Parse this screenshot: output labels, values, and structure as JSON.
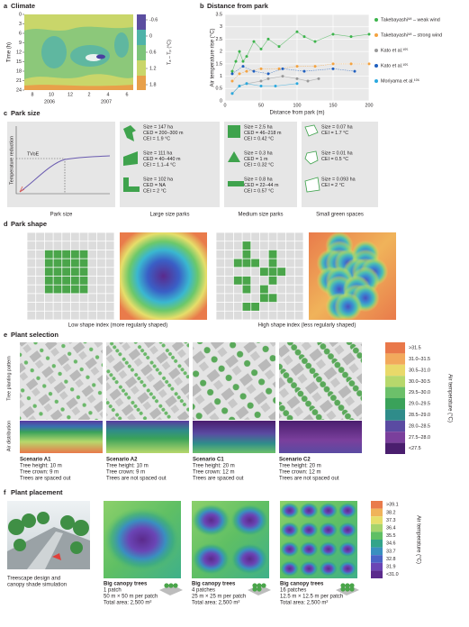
{
  "panels": {
    "a": {
      "label": "a",
      "title": "Climate",
      "y_label": "Time (h)",
      "y_ticks": [
        0,
        3,
        6,
        9,
        12,
        15,
        18,
        21,
        24
      ],
      "x_ticks": [
        8,
        10,
        12,
        2,
        4,
        6
      ],
      "years": [
        "2006",
        "2007"
      ],
      "colorbar_label": "Tₐ – Tₚ (°C)",
      "colorbar_ticks": [
        -0.6,
        0,
        0.6,
        1.2,
        1.8
      ]
    },
    "c": {
      "label": "c",
      "title": "Park size",
      "graph": {
        "y_label": "Temperature reduction",
        "annotation": "TVoE",
        "caption": "Park size"
      },
      "groups": [
        {
          "caption": "Large size parks",
          "entries": [
            [
              "Size = 147 ha",
              "CED = 200–300 m",
              "CEI = 1.9 °C"
            ],
            [
              "Size = 111 ha",
              "CED = 40–440 m",
              "CEI = 1.1–4 °C"
            ],
            [
              "Size = 102 ha",
              "CED = NA",
              "CEI = 2 °C"
            ]
          ]
        },
        {
          "caption": "Medium size parks",
          "entries": [
            [
              "Size = 2.5 ha",
              "CED = 46–218 m",
              "CEI = 0.42 °C"
            ],
            [
              "Size = 0.3 ha",
              "CED = 1 m",
              "CEI = 0.32 °C"
            ],
            [
              "Size = 0.8 ha",
              "CED = 22–44 m",
              "CEI = 0.57 °C"
            ]
          ]
        },
        {
          "caption": "Small green spaces",
          "entries": [
            [
              "Size = 0.07 ha",
              "CEI = 1.7 °C"
            ],
            [
              "Size = 0.01 ha",
              "CEI = 0.5 °C"
            ],
            [
              "Size = 0.093 ha",
              "CEI = 2 °C"
            ]
          ]
        }
      ]
    },
    "d": {
      "label": "d",
      "title": "Park shape",
      "captions": [
        "Low shape index (more regularly shaped)",
        "High shape index (less regularly shaped)"
      ]
    },
    "e": {
      "label": "e",
      "title": "Plant selection",
      "row_labels": [
        "Tree planting pattern",
        "Air distribution"
      ],
      "scenarios": [
        {
          "name": "Scenario A1",
          "lines": [
            "Tree height: 10 m",
            "Tree crown: 9 m",
            "Trees are spaced out"
          ]
        },
        {
          "name": "Scenario A2",
          "lines": [
            "Tree height: 10 m",
            "Tree crown: 9 m",
            "Trees are not spaced out"
          ]
        },
        {
          "name": "Scenario C1",
          "lines": [
            "Tree height: 20 m",
            "Tree crown: 12 m",
            "Trees are spaced out"
          ]
        },
        {
          "name": "Scenario C2",
          "lines": [
            "Tree height: 20 m",
            "Tree crown: 12 m",
            "Trees are not spaced out"
          ]
        }
      ],
      "legend_title": "Air temperature (°C)",
      "legend": [
        ">31.5",
        "31.0–31.5",
        "30.5–31.0",
        "30.0–30.5",
        "29.5–30.0",
        "29.0–29.5",
        "28.5–29.0",
        "28.0–28.5",
        "27.5–28.0",
        "<27.5"
      ],
      "legend_colors": [
        "#e9784a",
        "#f2a95c",
        "#e9d96a",
        "#b7d86c",
        "#6cc06a",
        "#3aa25a",
        "#2f8c8a",
        "#5a4ba2",
        "#7a3f9c",
        "#4a1e6e"
      ]
    },
    "f": {
      "label": "f",
      "title": "Plant placement",
      "image_caption": [
        "Treescape design and",
        "canopy shade simulation"
      ],
      "cases": [
        {
          "title": "Big canopy trees",
          "lines": [
            "1 patch",
            "50 m × 50 m per patch",
            "Total area: 2,500 m²"
          ]
        },
        {
          "title": "Big canopy trees",
          "lines": [
            "4 patches",
            "25 m × 25 m per patch",
            "Total area: 2,500 m²"
          ]
        },
        {
          "title": "Big canopy trees",
          "lines": [
            "16 patches",
            "12.5 m × 12.5 m per patch",
            "Total area: 2,500 m²"
          ]
        }
      ],
      "legend_title": "Air temperature (°C)",
      "legend": [
        ">39.1",
        "38.2",
        "37.3",
        "36.4",
        "35.5",
        "34.6",
        "33.7",
        "32.8",
        "31.9",
        "<31.0"
      ],
      "legend_colors": [
        "#e97b4b",
        "#f0b35a",
        "#e6de6a",
        "#a6d46c",
        "#5fbf64",
        "#33a48a",
        "#3a8fc0",
        "#4a63c6",
        "#6a45b5",
        "#5b2a8c"
      ]
    }
  },
  "chart_data": {
    "type": "scatter",
    "label": "b",
    "title": "Distance from park",
    "x_label": "Distance from park (m)",
    "y_label": "Air temperature rise (°C)",
    "xlim": [
      0,
      200
    ],
    "ylim": [
      0,
      3.5
    ],
    "xticks": [
      0,
      50,
      100,
      150,
      200
    ],
    "yticks": [
      0,
      0.5,
      1,
      1.5,
      2,
      2.5,
      3,
      3.5
    ],
    "grid": true,
    "series": [
      {
        "name": "Takebayashi⁹⁸ – weak wind",
        "color": "#3cb44b",
        "x": [
          10,
          15,
          20,
          25,
          30,
          40,
          50,
          60,
          75,
          100,
          110,
          125,
          150,
          175,
          200
        ],
        "values": [
          1.2,
          1.6,
          2.0,
          1.6,
          1.8,
          2.4,
          2.1,
          2.5,
          2.2,
          2.8,
          2.6,
          2.4,
          2.7,
          2.6,
          2.7
        ]
      },
      {
        "name": "Takebayashi⁹⁸ – strong wind",
        "color": "#f4a340",
        "x": [
          10,
          20,
          30,
          50,
          75,
          100,
          125,
          150,
          175,
          200
        ],
        "values": [
          0.8,
          1.1,
          1.2,
          1.3,
          1.3,
          1.4,
          1.4,
          1.5,
          1.5,
          1.5
        ]
      },
      {
        "name": "Kato et al.¹⁰⁵",
        "color": "#9a9a9a",
        "x": [
          10,
          20,
          30,
          50,
          60,
          80,
          100,
          115,
          130
        ],
        "values": [
          0.3,
          0.6,
          0.7,
          0.8,
          0.9,
          1.0,
          0.9,
          0.8,
          0.9
        ]
      },
      {
        "name": "Kato et al.¹⁰⁵",
        "color": "#1f5fbf",
        "x": [
          10,
          25,
          40,
          60,
          80,
          110,
          150,
          180
        ],
        "values": [
          1.1,
          1.4,
          1.2,
          1.1,
          1.3,
          1.2,
          1.3,
          1.2
        ]
      },
      {
        "name": "Moriyama et al.¹⁰⁶",
        "color": "#2aa9df",
        "x": [
          10,
          20,
          30,
          50,
          70,
          100
        ],
        "values": [
          0.3,
          0.6,
          0.7,
          0.6,
          0.6,
          0.7
        ]
      }
    ]
  }
}
